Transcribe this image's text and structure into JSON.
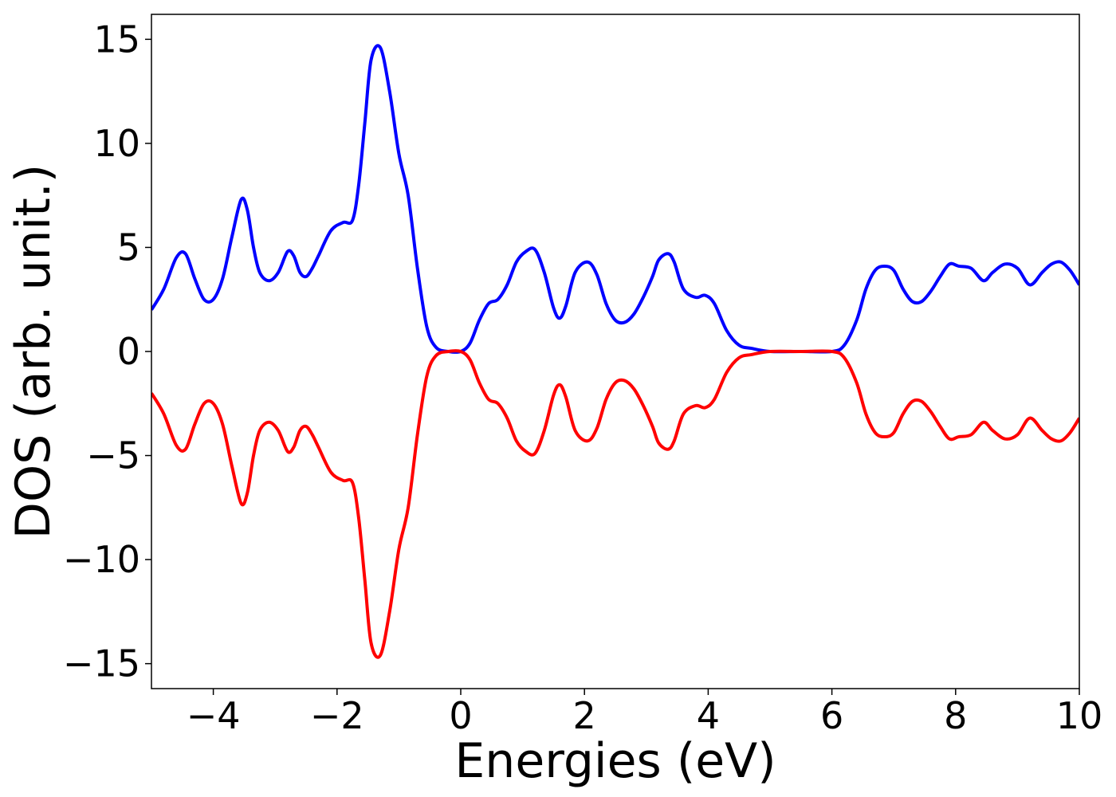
{
  "chart_data": {
    "type": "line",
    "title": "",
    "xlabel": "Energies (eV)",
    "ylabel": "DOS (arb. unit.)",
    "xlim": [
      -5,
      10
    ],
    "ylim": [
      -16.2,
      16.2
    ],
    "grid": false,
    "x_ticks": [
      {
        "value": -4,
        "label": "−4"
      },
      {
        "value": -2,
        "label": "−2"
      },
      {
        "value": 0,
        "label": "0"
      },
      {
        "value": 2,
        "label": "2"
      },
      {
        "value": 4,
        "label": "4"
      },
      {
        "value": 6,
        "label": "6"
      },
      {
        "value": 8,
        "label": "8"
      },
      {
        "value": 10,
        "label": "10"
      }
    ],
    "y_ticks": [
      {
        "value": 15,
        "label": "15"
      },
      {
        "value": 10,
        "label": "10"
      },
      {
        "value": 5,
        "label": "5"
      },
      {
        "value": 0,
        "label": "0"
      },
      {
        "value": -5,
        "label": "−5"
      },
      {
        "value": -10,
        "label": "−10"
      },
      {
        "value": -15,
        "label": "−15"
      }
    ],
    "series": [
      {
        "color": "#0000ff",
        "x": [
          -5.0,
          -4.8,
          -4.6,
          -4.45,
          -4.3,
          -4.15,
          -4.0,
          -3.85,
          -3.7,
          -3.55,
          -3.45,
          -3.35,
          -3.25,
          -3.1,
          -2.95,
          -2.8,
          -2.7,
          -2.6,
          -2.5,
          -2.4,
          -2.3,
          -2.1,
          -1.9,
          -1.75,
          -1.65,
          -1.55,
          -1.45,
          -1.3,
          -1.15,
          -1.0,
          -0.85,
          -0.7,
          -0.55,
          -0.4,
          -0.2,
          0.0,
          0.15,
          0.3,
          0.45,
          0.6,
          0.75,
          0.9,
          1.05,
          1.2,
          1.35,
          1.5,
          1.6,
          1.7,
          1.85,
          2.05,
          2.2,
          2.35,
          2.5,
          2.65,
          2.8,
          2.95,
          3.1,
          3.2,
          3.35,
          3.45,
          3.6,
          3.8,
          3.95,
          4.1,
          4.3,
          4.5,
          4.7,
          5.0,
          5.5,
          6.0,
          6.2,
          6.4,
          6.55,
          6.7,
          6.85,
          7.0,
          7.15,
          7.3,
          7.45,
          7.6,
          7.75,
          7.9,
          8.05,
          8.25,
          8.45,
          8.6,
          8.8,
          9.0,
          9.2,
          9.4,
          9.55,
          9.7,
          9.85,
          10.0
        ],
        "y": [
          2.0,
          3.0,
          4.5,
          4.7,
          3.5,
          2.5,
          2.5,
          3.5,
          5.5,
          7.3,
          6.8,
          5.0,
          3.8,
          3.4,
          3.8,
          4.8,
          4.6,
          3.8,
          3.6,
          4.0,
          4.6,
          5.8,
          6.2,
          6.3,
          8.0,
          11.0,
          14.0,
          14.6,
          12.5,
          9.5,
          7.5,
          4.0,
          1.2,
          0.2,
          0.0,
          0.0,
          0.4,
          1.5,
          2.3,
          2.5,
          3.2,
          4.3,
          4.8,
          4.9,
          3.8,
          2.1,
          1.6,
          2.2,
          3.8,
          4.3,
          3.7,
          2.3,
          1.5,
          1.4,
          1.8,
          2.6,
          3.6,
          4.4,
          4.7,
          4.3,
          3.0,
          2.6,
          2.7,
          2.3,
          1.0,
          0.3,
          0.15,
          0.0,
          0.0,
          0.0,
          0.3,
          1.5,
          3.0,
          3.9,
          4.1,
          3.9,
          3.0,
          2.4,
          2.4,
          2.9,
          3.6,
          4.2,
          4.1,
          4.0,
          3.4,
          3.8,
          4.2,
          4.0,
          3.2,
          3.8,
          4.2,
          4.3,
          3.9,
          3.2
        ]
      },
      {
        "color": "#ff0000",
        "x": [
          -5.0,
          -4.8,
          -4.6,
          -4.45,
          -4.3,
          -4.15,
          -4.0,
          -3.85,
          -3.7,
          -3.55,
          -3.45,
          -3.35,
          -3.25,
          -3.1,
          -2.95,
          -2.8,
          -2.7,
          -2.6,
          -2.5,
          -2.4,
          -2.3,
          -2.1,
          -1.9,
          -1.75,
          -1.65,
          -1.55,
          -1.45,
          -1.3,
          -1.15,
          -1.0,
          -0.85,
          -0.7,
          -0.55,
          -0.4,
          -0.2,
          0.0,
          0.15,
          0.3,
          0.45,
          0.6,
          0.75,
          0.9,
          1.05,
          1.2,
          1.35,
          1.5,
          1.6,
          1.7,
          1.85,
          2.05,
          2.2,
          2.35,
          2.5,
          2.65,
          2.8,
          2.95,
          3.1,
          3.2,
          3.35,
          3.45,
          3.6,
          3.8,
          3.95,
          4.1,
          4.3,
          4.5,
          4.7,
          5.0,
          5.5,
          6.0,
          6.2,
          6.4,
          6.55,
          6.7,
          6.85,
          7.0,
          7.15,
          7.3,
          7.45,
          7.6,
          7.75,
          7.9,
          8.05,
          8.25,
          8.45,
          8.6,
          8.8,
          9.0,
          9.2,
          9.4,
          9.55,
          9.7,
          9.85,
          10.0
        ],
        "y": [
          -2.0,
          -3.0,
          -4.5,
          -4.7,
          -3.5,
          -2.5,
          -2.5,
          -3.5,
          -5.5,
          -7.3,
          -6.8,
          -5.0,
          -3.8,
          -3.4,
          -3.8,
          -4.8,
          -4.6,
          -3.8,
          -3.6,
          -4.0,
          -4.6,
          -5.8,
          -6.2,
          -6.3,
          -8.0,
          -11.0,
          -14.0,
          -14.6,
          -12.5,
          -9.5,
          -7.5,
          -4.0,
          -1.2,
          -0.2,
          0.0,
          0.0,
          -0.4,
          -1.5,
          -2.3,
          -2.5,
          -3.2,
          -4.3,
          -4.8,
          -4.9,
          -3.8,
          -2.1,
          -1.6,
          -2.2,
          -3.8,
          -4.3,
          -3.7,
          -2.3,
          -1.5,
          -1.4,
          -1.8,
          -2.6,
          -3.6,
          -4.4,
          -4.7,
          -4.3,
          -3.0,
          -2.6,
          -2.7,
          -2.3,
          -1.0,
          -0.3,
          -0.15,
          0.0,
          0.0,
          0.0,
          -0.3,
          -1.5,
          -3.0,
          -3.9,
          -4.1,
          -3.9,
          -3.0,
          -2.4,
          -2.4,
          -2.9,
          -3.6,
          -4.2,
          -4.1,
          -4.0,
          -3.4,
          -3.8,
          -4.2,
          -4.0,
          -3.2,
          -3.8,
          -4.2,
          -4.3,
          -3.9,
          -3.2
        ]
      }
    ]
  }
}
